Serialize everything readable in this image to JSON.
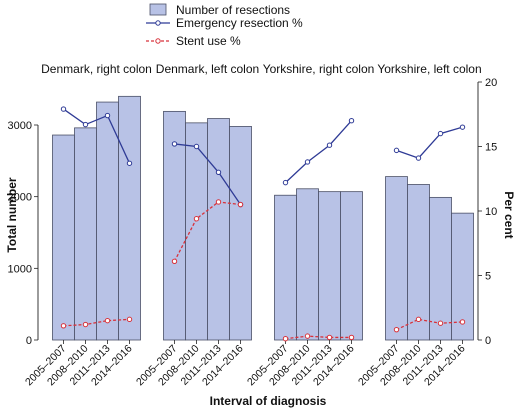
{
  "chart_data": {
    "type": "bar",
    "xlabel": "Interval of diagnosis",
    "ylabel": "Total number",
    "ylabel_right": "Per cent",
    "categories": [
      "2005–2007",
      "2008–2010",
      "2011–2013",
      "2014–2016"
    ],
    "ylim": [
      0,
      3600
    ],
    "yticks": [
      "0",
      "1000",
      "2000",
      "3000"
    ],
    "ylim_right": [
      0,
      20
    ],
    "yticks_right": [
      "0",
      "5",
      "10",
      "15",
      "20"
    ],
    "legend": {
      "position": "top-center",
      "items": [
        "Number of resections",
        "Emergency resection %",
        "Stent use %"
      ]
    },
    "colors": {
      "bar_fill": "#b8c2e6",
      "bar_stroke": "#4a4f66",
      "emergency_line": "#2f3b96",
      "stent_line": "#d8313a"
    },
    "panels": [
      {
        "title": "Denmark, right colon",
        "resections": [
          2860,
          2960,
          3320,
          3400
        ],
        "emergency_pct": [
          17.9,
          16.7,
          17.4,
          13.7
        ],
        "stent_pct": [
          1.1,
          1.2,
          1.5,
          1.6
        ]
      },
      {
        "title": "Denmark, left colon",
        "resections": [
          3190,
          3030,
          3090,
          2980
        ],
        "emergency_pct": [
          15.2,
          15.0,
          13.0,
          10.5
        ],
        "stent_pct": [
          6.1,
          9.4,
          10.7,
          10.5
        ]
      },
      {
        "title": "Yorkshire, right colon",
        "resections": [
          2020,
          2110,
          2070,
          2070
        ],
        "emergency_pct": [
          12.2,
          13.8,
          15.1,
          17.0
        ],
        "stent_pct": [
          0.1,
          0.3,
          0.2,
          0.2
        ]
      },
      {
        "title": "Yorkshire, left colon",
        "resections": [
          2280,
          2170,
          1990,
          1770
        ],
        "emergency_pct": [
          14.7,
          14.1,
          16.0,
          16.5
        ],
        "stent_pct": [
          0.8,
          1.6,
          1.3,
          1.4
        ]
      }
    ]
  }
}
